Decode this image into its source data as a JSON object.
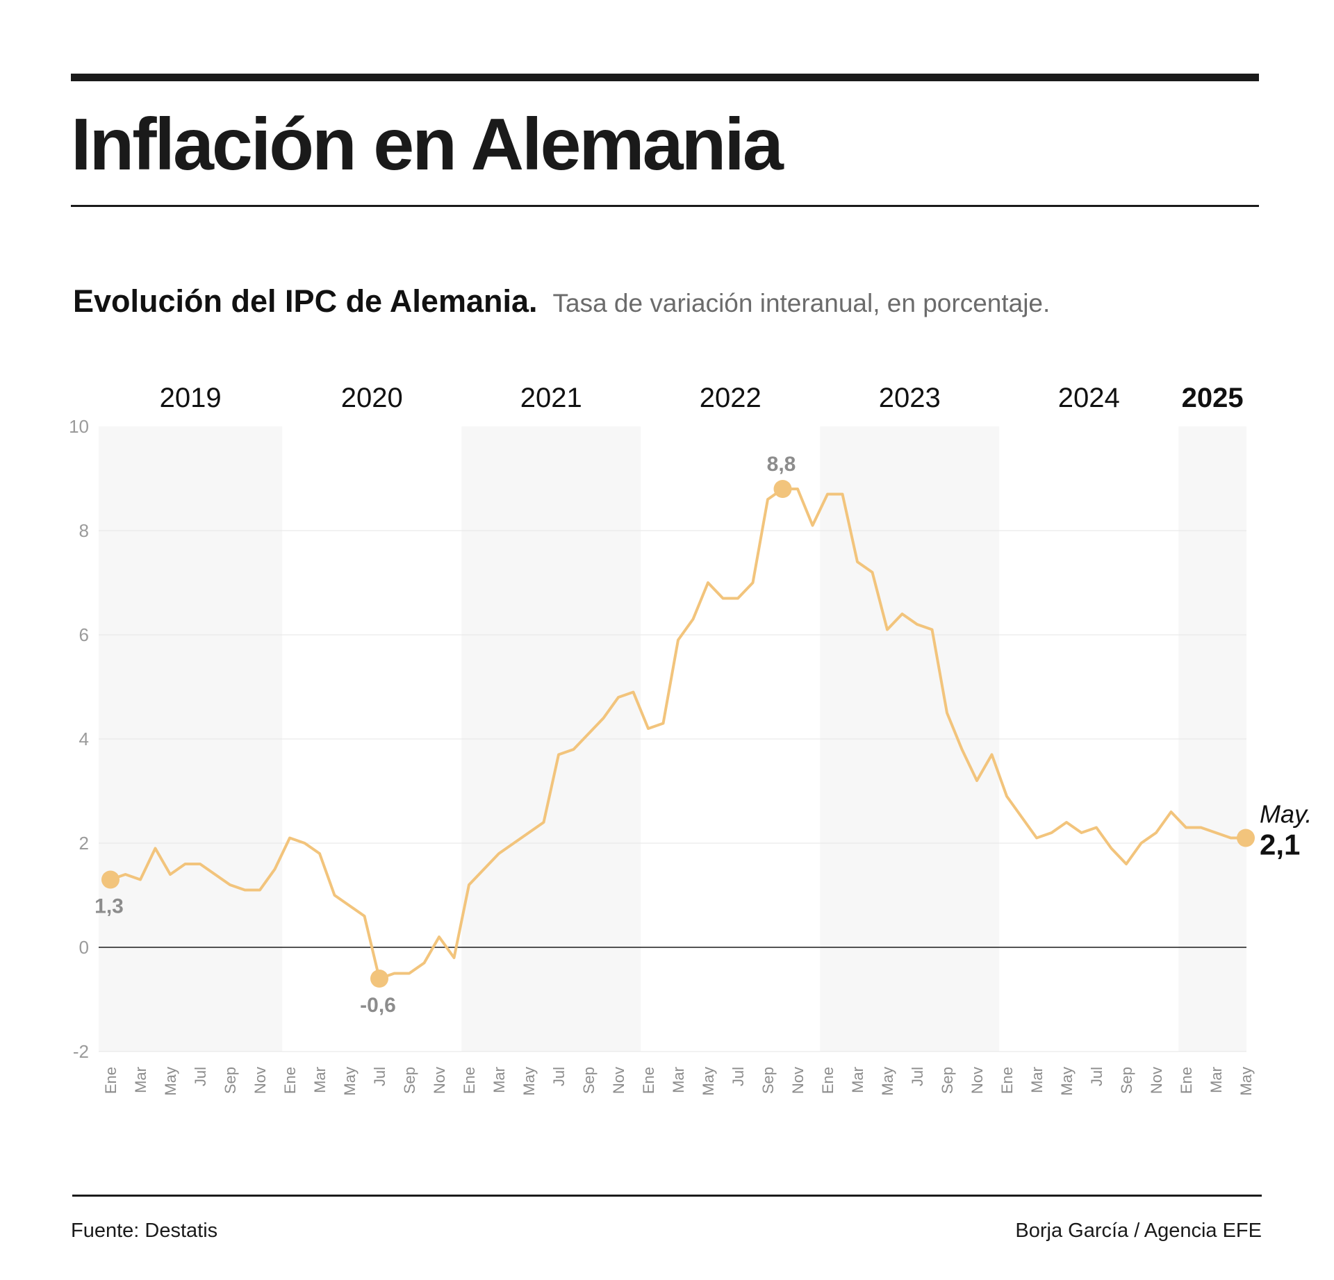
{
  "header": {
    "title": "Inflación en Alemania",
    "subtitle": "Evolución del IPC de Alemania.",
    "description": "Tasa de variación interanual, en porcentaje."
  },
  "footer": {
    "source": "Fuente: Destatis",
    "credit": "Borja García / Agencia EFE"
  },
  "chart_data": {
    "type": "line",
    "title": "Evolución del IPC de Alemania.",
    "subtitle": "Tasa de variación interanual, en porcentaje.",
    "xlabel": "",
    "ylabel": "",
    "ylim": [
      -2,
      10
    ],
    "yticks": [
      -2,
      0,
      2,
      4,
      6,
      8,
      10
    ],
    "grid": true,
    "line_color": "#f2c47c",
    "band_color": "#f7f7f7",
    "years": [
      "2019",
      "2020",
      "2021",
      "2022",
      "2023",
      "2024",
      "2025"
    ],
    "month_tick_labels": [
      "Ene",
      "Mar",
      "May",
      "Jul",
      "Sep",
      "Nov"
    ],
    "series": [
      {
        "x_start": "2019-01",
        "x_end": "2025-05",
        "values": [
          1.3,
          1.4,
          1.3,
          1.9,
          1.4,
          1.6,
          1.6,
          1.4,
          1.2,
          1.1,
          1.1,
          1.5,
          2.1,
          2.0,
          1.8,
          1.0,
          0.8,
          0.6,
          -0.6,
          -0.5,
          -0.5,
          -0.3,
          0.2,
          -0.2,
          1.2,
          1.5,
          1.8,
          2.0,
          2.2,
          2.4,
          3.7,
          3.8,
          4.1,
          4.4,
          4.8,
          4.9,
          4.2,
          4.3,
          5.9,
          6.3,
          7.0,
          6.7,
          6.7,
          7.0,
          8.6,
          8.8,
          8.8,
          8.1,
          8.7,
          8.7,
          7.4,
          7.2,
          6.1,
          6.4,
          6.2,
          6.1,
          4.5,
          3.8,
          3.2,
          3.7,
          2.9,
          2.5,
          2.1,
          2.2,
          2.4,
          2.2,
          2.3,
          1.9,
          1.6,
          2.0,
          2.2,
          2.6,
          2.3,
          2.3,
          2.2,
          2.1,
          2.1
        ]
      }
    ],
    "annotations": [
      {
        "x": "2019-01",
        "label": "1,3",
        "value": 1.3,
        "label_position": "below"
      },
      {
        "x": "2020-07",
        "label": "-0,6",
        "value": -0.6,
        "label_position": "below"
      },
      {
        "x": "2022-10",
        "label": "8,8",
        "value": 8.8,
        "label_position": "above"
      },
      {
        "x": "2025-05",
        "label": "2,1",
        "prefix": "May.",
        "value": 2.1,
        "label_position": "right"
      }
    ]
  }
}
